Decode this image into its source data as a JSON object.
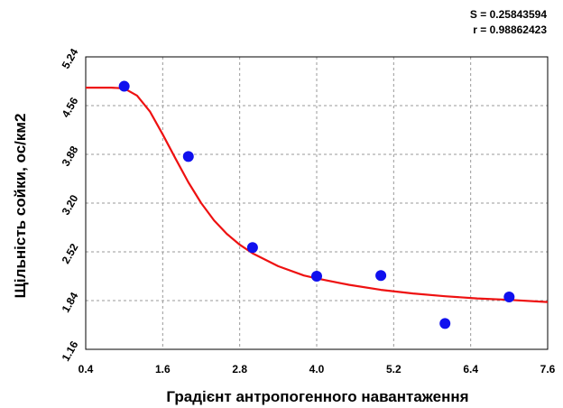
{
  "stats": {
    "s_text": "S = 0.25843594",
    "r_text": "r = 0.98862423"
  },
  "chart_data": {
    "type": "scatter",
    "title": "",
    "xlabel": "Градієнт антропогенного навантаження",
    "ylabel": "Щільність сойки, ос/км2",
    "xlim": [
      0.4,
      7.6
    ],
    "ylim": [
      1.16,
      5.24
    ],
    "x_ticks": [
      "0.4",
      "1.6",
      "2.8",
      "4.0",
      "5.2",
      "6.4",
      "7.6"
    ],
    "y_ticks": [
      "1.16",
      "1.84",
      "2.52",
      "3.20",
      "3.88",
      "4.56",
      "5.24"
    ],
    "x_tick_values": [
      0.4,
      1.6,
      2.8,
      4.0,
      5.2,
      6.4,
      7.6
    ],
    "y_tick_values": [
      1.16,
      1.84,
      2.52,
      3.2,
      3.88,
      4.56,
      5.24
    ],
    "grid": true,
    "series": [
      {
        "kind": "points",
        "color": "#1010ee",
        "points": [
          {
            "x": 1,
            "y": 4.83
          },
          {
            "x": 2,
            "y": 3.85
          },
          {
            "x": 3,
            "y": 2.58
          },
          {
            "x": 4,
            "y": 2.18
          },
          {
            "x": 5,
            "y": 2.19
          },
          {
            "x": 6,
            "y": 1.52
          },
          {
            "x": 7,
            "y": 1.89
          }
        ]
      },
      {
        "kind": "fitted-curve",
        "color": "#ee1111",
        "points": [
          {
            "x": 0.4,
            "y": 4.81
          },
          {
            "x": 0.8,
            "y": 4.81
          },
          {
            "x": 1.0,
            "y": 4.8
          },
          {
            "x": 1.2,
            "y": 4.7
          },
          {
            "x": 1.4,
            "y": 4.48
          },
          {
            "x": 1.6,
            "y": 4.16
          },
          {
            "x": 1.8,
            "y": 3.82
          },
          {
            "x": 2.0,
            "y": 3.49
          },
          {
            "x": 2.2,
            "y": 3.2
          },
          {
            "x": 2.4,
            "y": 2.96
          },
          {
            "x": 2.6,
            "y": 2.77
          },
          {
            "x": 2.8,
            "y": 2.62
          },
          {
            "x": 3.0,
            "y": 2.5
          },
          {
            "x": 3.4,
            "y": 2.32
          },
          {
            "x": 3.8,
            "y": 2.19
          },
          {
            "x": 4.0,
            "y": 2.15
          },
          {
            "x": 4.5,
            "y": 2.06
          },
          {
            "x": 5.0,
            "y": 1.99
          },
          {
            "x": 5.5,
            "y": 1.94
          },
          {
            "x": 6.0,
            "y": 1.9
          },
          {
            "x": 6.5,
            "y": 1.87
          },
          {
            "x": 7.0,
            "y": 1.85
          },
          {
            "x": 7.6,
            "y": 1.82
          }
        ]
      }
    ]
  }
}
